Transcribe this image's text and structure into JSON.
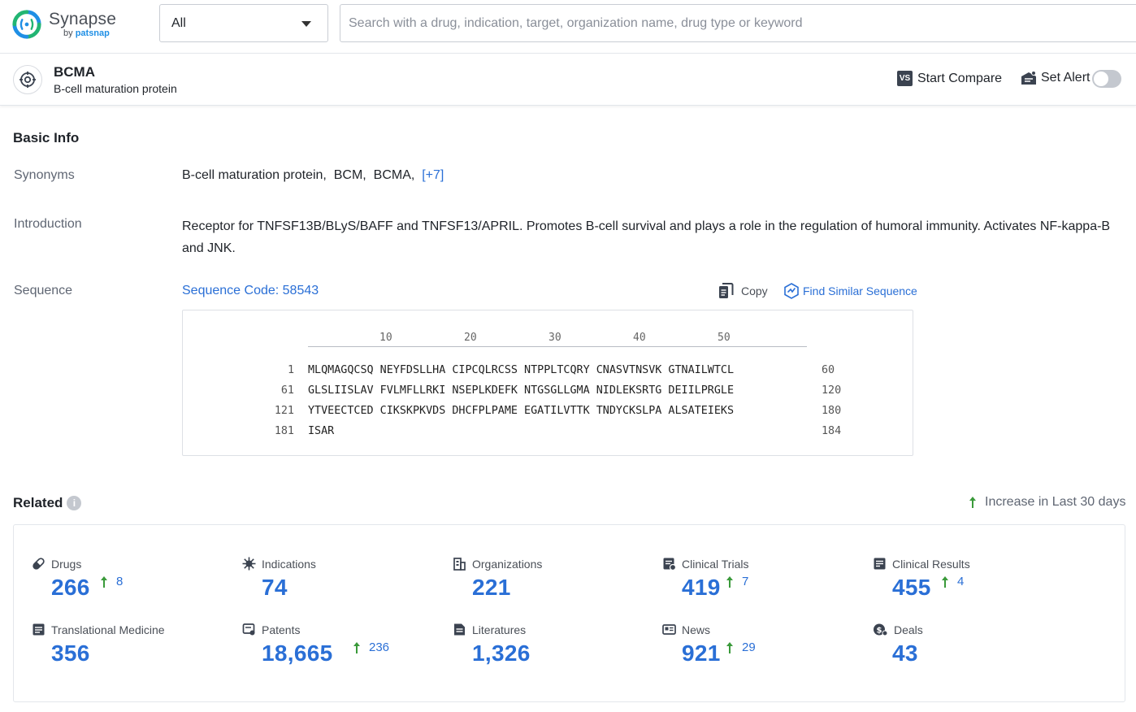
{
  "brand": {
    "name": "Synapse",
    "sub_prefix": "by ",
    "sub_brand": "patsnap"
  },
  "search": {
    "type_value": "All",
    "placeholder": "Search with a drug, indication, target, organization name, drug type or keyword"
  },
  "entity": {
    "name": "BCMA",
    "full_name": "B-cell maturation protein",
    "compare_label": "Start Compare",
    "compare_icon_text": "VS",
    "alert_label": "Set Alert",
    "alert_enabled": false
  },
  "basic_info": {
    "title": "Basic Info",
    "synonyms_label": "Synonyms",
    "synonyms": [
      "B-cell maturation protein,",
      "BCM,",
      "BCMA,"
    ],
    "synonyms_more": "[+7]",
    "introduction_label": "Introduction",
    "introduction": "Receptor for TNFSF13B/BLyS/BAFF and TNFSF13/APRIL. Promotes B-cell survival and plays a role in the regulation of humoral immunity. Activates NF-kappa-B and JNK.",
    "sequence_label": "Sequence",
    "sequence_code": "Sequence Code: 58543",
    "copy_label": "Copy",
    "find_similar_label": "Find Similar Sequence"
  },
  "sequence": {
    "ruler": [
      "10",
      "20",
      "30",
      "40",
      "50"
    ],
    "rows": [
      {
        "start": "1",
        "text": "MLQMAGQCSQ NEYFDSLLHA CIPCQLRCSS NTPPLTCQRY CNASVTNSVK GTNAILWTCL",
        "end": "60"
      },
      {
        "start": "61",
        "text": "GLSLIISLAV FVLMFLLRKI NSEPLKDEFK NTGSGLLGMA NIDLEKSRTG DEIILPRGLE",
        "end": "120"
      },
      {
        "start": "121",
        "text": "YTVEECTCED CIKSKPKVDS DHCFPLPAME EGATILVTTK TNDYCKSLPA ALSATEIEKS",
        "end": "180"
      },
      {
        "start": "181",
        "text": "ISAR",
        "end": "184"
      }
    ]
  },
  "related": {
    "title": "Related",
    "info_icon_text": "i",
    "legend": "Increase in Last 30 days",
    "colors": {
      "accent": "#2a6fd6",
      "increase": "#3a9a3a"
    },
    "stats": [
      {
        "label": "Drugs",
        "value": "266",
        "increase": "8",
        "icon": "pill-icon"
      },
      {
        "label": "Indications",
        "value": "74",
        "increase": "",
        "icon": "virus-icon"
      },
      {
        "label": "Organizations",
        "value": "221",
        "increase": "",
        "icon": "building-icon"
      },
      {
        "label": "Clinical Trials",
        "value": "419",
        "increase": "7",
        "icon": "clipboard-icon"
      },
      {
        "label": "Clinical Results",
        "value": "455",
        "increase": "4",
        "icon": "report-icon"
      },
      {
        "label": "Translational Medicine",
        "value": "356",
        "increase": "",
        "icon": "document-icon"
      },
      {
        "label": "Patents",
        "value": "18,665",
        "increase": "236",
        "icon": "patent-icon"
      },
      {
        "label": "Literatures",
        "value": "1,326",
        "increase": "",
        "icon": "literature-icon"
      },
      {
        "label": "News",
        "value": "921",
        "increase": "29",
        "icon": "newspaper-icon"
      },
      {
        "label": "Deals",
        "value": "43",
        "increase": "",
        "icon": "deals-icon"
      }
    ]
  }
}
